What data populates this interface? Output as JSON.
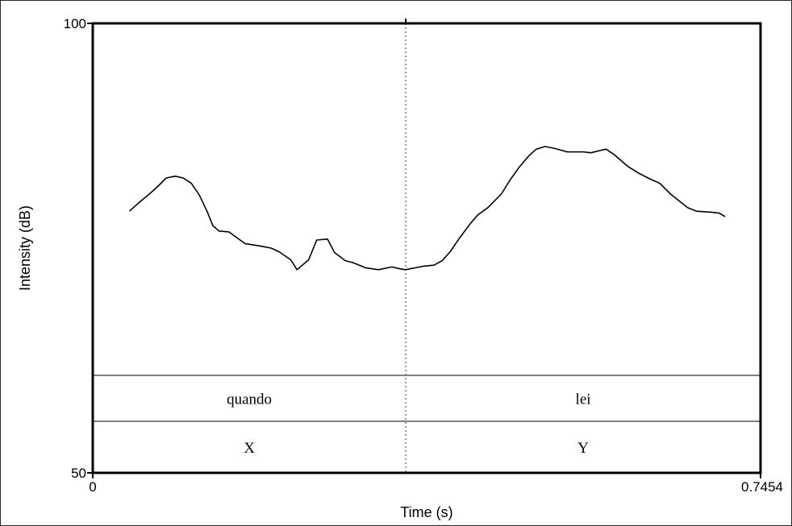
{
  "chart_data": {
    "type": "line",
    "title": "",
    "xlabel": "Time (s)",
    "ylabel": "Intensity (dB)",
    "xlim": [
      0,
      0.7454
    ],
    "ylim": [
      50,
      100
    ],
    "x_ticks": [
      "0",
      "0.7454"
    ],
    "y_ticks": [
      "100",
      "50"
    ],
    "grid": false,
    "boundary_time": 0.3494,
    "series": [
      {
        "x": [
          0.041,
          0.052,
          0.063,
          0.073,
          0.082,
          0.092,
          0.101,
          0.11,
          0.119,
          0.128,
          0.134,
          0.141,
          0.152,
          0.17,
          0.189,
          0.199,
          0.208,
          0.221,
          0.228,
          0.241,
          0.25,
          0.262,
          0.27,
          0.282,
          0.29,
          0.305,
          0.319,
          0.334,
          0.343,
          0.349,
          0.359,
          0.37,
          0.381,
          0.39,
          0.399,
          0.41,
          0.422,
          0.43,
          0.441,
          0.456,
          0.466,
          0.476,
          0.487,
          0.495,
          0.505,
          0.515,
          0.53,
          0.548,
          0.556,
          0.568,
          0.573,
          0.582,
          0.597,
          0.61,
          0.622,
          0.633,
          0.645,
          0.664,
          0.674,
          0.69,
          0.699,
          0.706
        ],
        "y": [
          79.1,
          80.1,
          81.0,
          81.9,
          82.8,
          83.0,
          82.8,
          82.2,
          80.9,
          79.0,
          77.5,
          76.9,
          76.8,
          75.5,
          75.2,
          75.0,
          74.6,
          73.7,
          72.6,
          73.7,
          75.9,
          76.0,
          74.5,
          73.6,
          73.4,
          72.8,
          72.6,
          72.9,
          72.7,
          72.6,
          72.8,
          73.0,
          73.1,
          73.6,
          74.6,
          76.2,
          77.8,
          78.7,
          79.5,
          81.0,
          82.6,
          84.0,
          85.3,
          86.0,
          86.3,
          86.1,
          85.7,
          85.7,
          85.6,
          85.9,
          86.0,
          85.4,
          84.1,
          83.3,
          82.7,
          82.2,
          81.0,
          79.5,
          79.1,
          79.0,
          78.9,
          78.5
        ]
      }
    ],
    "tiers": [
      {
        "name": "",
        "intervals": [
          {
            "label": "quando",
            "start": 0,
            "end": 0.3494
          },
          {
            "label": "lei",
            "start": 0.3494,
            "end": 0.7454
          }
        ]
      },
      {
        "name": "",
        "intervals": [
          {
            "label": "X",
            "start": 0,
            "end": 0.3494
          },
          {
            "label": "Y",
            "start": 0.3494,
            "end": 0.7454
          }
        ]
      }
    ]
  }
}
